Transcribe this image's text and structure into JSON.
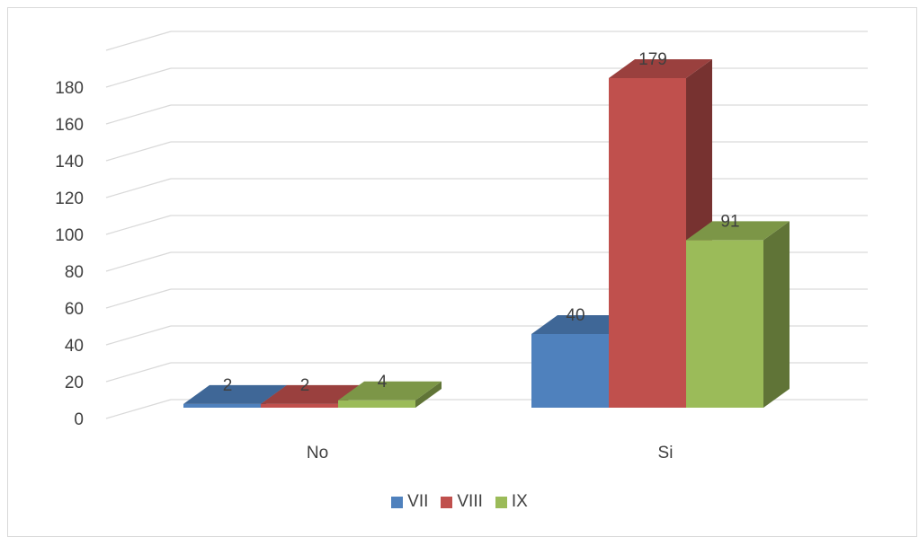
{
  "chart_data": {
    "type": "bar",
    "title": "",
    "xlabel": "",
    "ylabel": "",
    "ylim": [
      0,
      180
    ],
    "y_ticks": [
      "0",
      "20",
      "40",
      "60",
      "80",
      "100",
      "120",
      "140",
      "160",
      "180"
    ],
    "categories": [
      "No",
      "Si"
    ],
    "series": [
      {
        "name": "VII",
        "values": [
          2,
          40
        ],
        "color": "#4f81bd"
      },
      {
        "name": "VIII",
        "values": [
          2,
          179
        ],
        "color": "#c0504d"
      },
      {
        "name": "IX",
        "values": [
          4,
          91
        ],
        "color": "#9bbb59"
      }
    ],
    "grid": true,
    "legend_position": "bottom",
    "style": "3d-clustered-column"
  }
}
